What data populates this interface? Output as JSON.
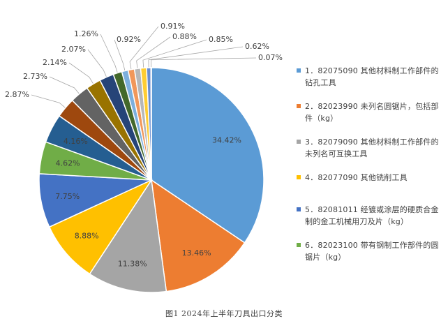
{
  "caption": "图1  2024年上半年刀具出口分类",
  "chart_data": {
    "type": "pie",
    "title": "",
    "start_angle_deg": 0,
    "direction": "clockwise",
    "legend_position": "right",
    "slices": [
      {
        "value": 34.42,
        "label": "34.42%",
        "color": "#5B9BD5",
        "legend": "1．82075090 其他材料制工作部件的钻孔工具"
      },
      {
        "value": 13.46,
        "label": "13.46%",
        "color": "#ED7D31",
        "legend": "2．82023990 未列名圆锯片，包括部件（kg）"
      },
      {
        "value": 11.38,
        "label": "11.38%",
        "color": "#A5A5A5",
        "legend": "3．82079090 其他材料制工作部件的未列名可互换工具"
      },
      {
        "value": 8.88,
        "label": "8.88%",
        "color": "#FFC000",
        "legend": "4．82077090 其他铣削工具"
      },
      {
        "value": 7.75,
        "label": "7.75%",
        "color": "#4472C4",
        "legend": "5．82081011 经镀或涂层的硬质合金制的金工机械用刀及片（kg）"
      },
      {
        "value": 4.62,
        "label": "4.62%",
        "color": "#70AD47",
        "legend": "6．82023100 带有钢制工作部件的圆锯片（kg）"
      },
      {
        "value": 4.16,
        "label": "4.16%",
        "color": "#255E91",
        "legend": ""
      },
      {
        "value": 2.87,
        "label": "2.87%",
        "color": "#9E480E",
        "legend": ""
      },
      {
        "value": 2.73,
        "label": "2.73%",
        "color": "#636363",
        "legend": ""
      },
      {
        "value": 2.14,
        "label": "2.14%",
        "color": "#997300",
        "legend": ""
      },
      {
        "value": 2.07,
        "label": "2.07%",
        "color": "#264478",
        "legend": ""
      },
      {
        "value": 1.26,
        "label": "1.26%",
        "color": "#43682B",
        "legend": ""
      },
      {
        "value": 0.92,
        "label": "0.92%",
        "color": "#7CAFDD",
        "legend": ""
      },
      {
        "value": 0.91,
        "label": "0.91%",
        "color": "#F1975A",
        "legend": ""
      },
      {
        "value": 0.88,
        "label": "0.88%",
        "color": "#B7B7B7",
        "legend": ""
      },
      {
        "value": 0.85,
        "label": "0.85%",
        "color": "#FFCD33",
        "legend": ""
      },
      {
        "value": 0.62,
        "label": "0.62%",
        "color": "#698ED0",
        "legend": ""
      },
      {
        "value": 0.07,
        "label": "0.07%",
        "color": "#8CC168",
        "legend": ""
      }
    ]
  }
}
